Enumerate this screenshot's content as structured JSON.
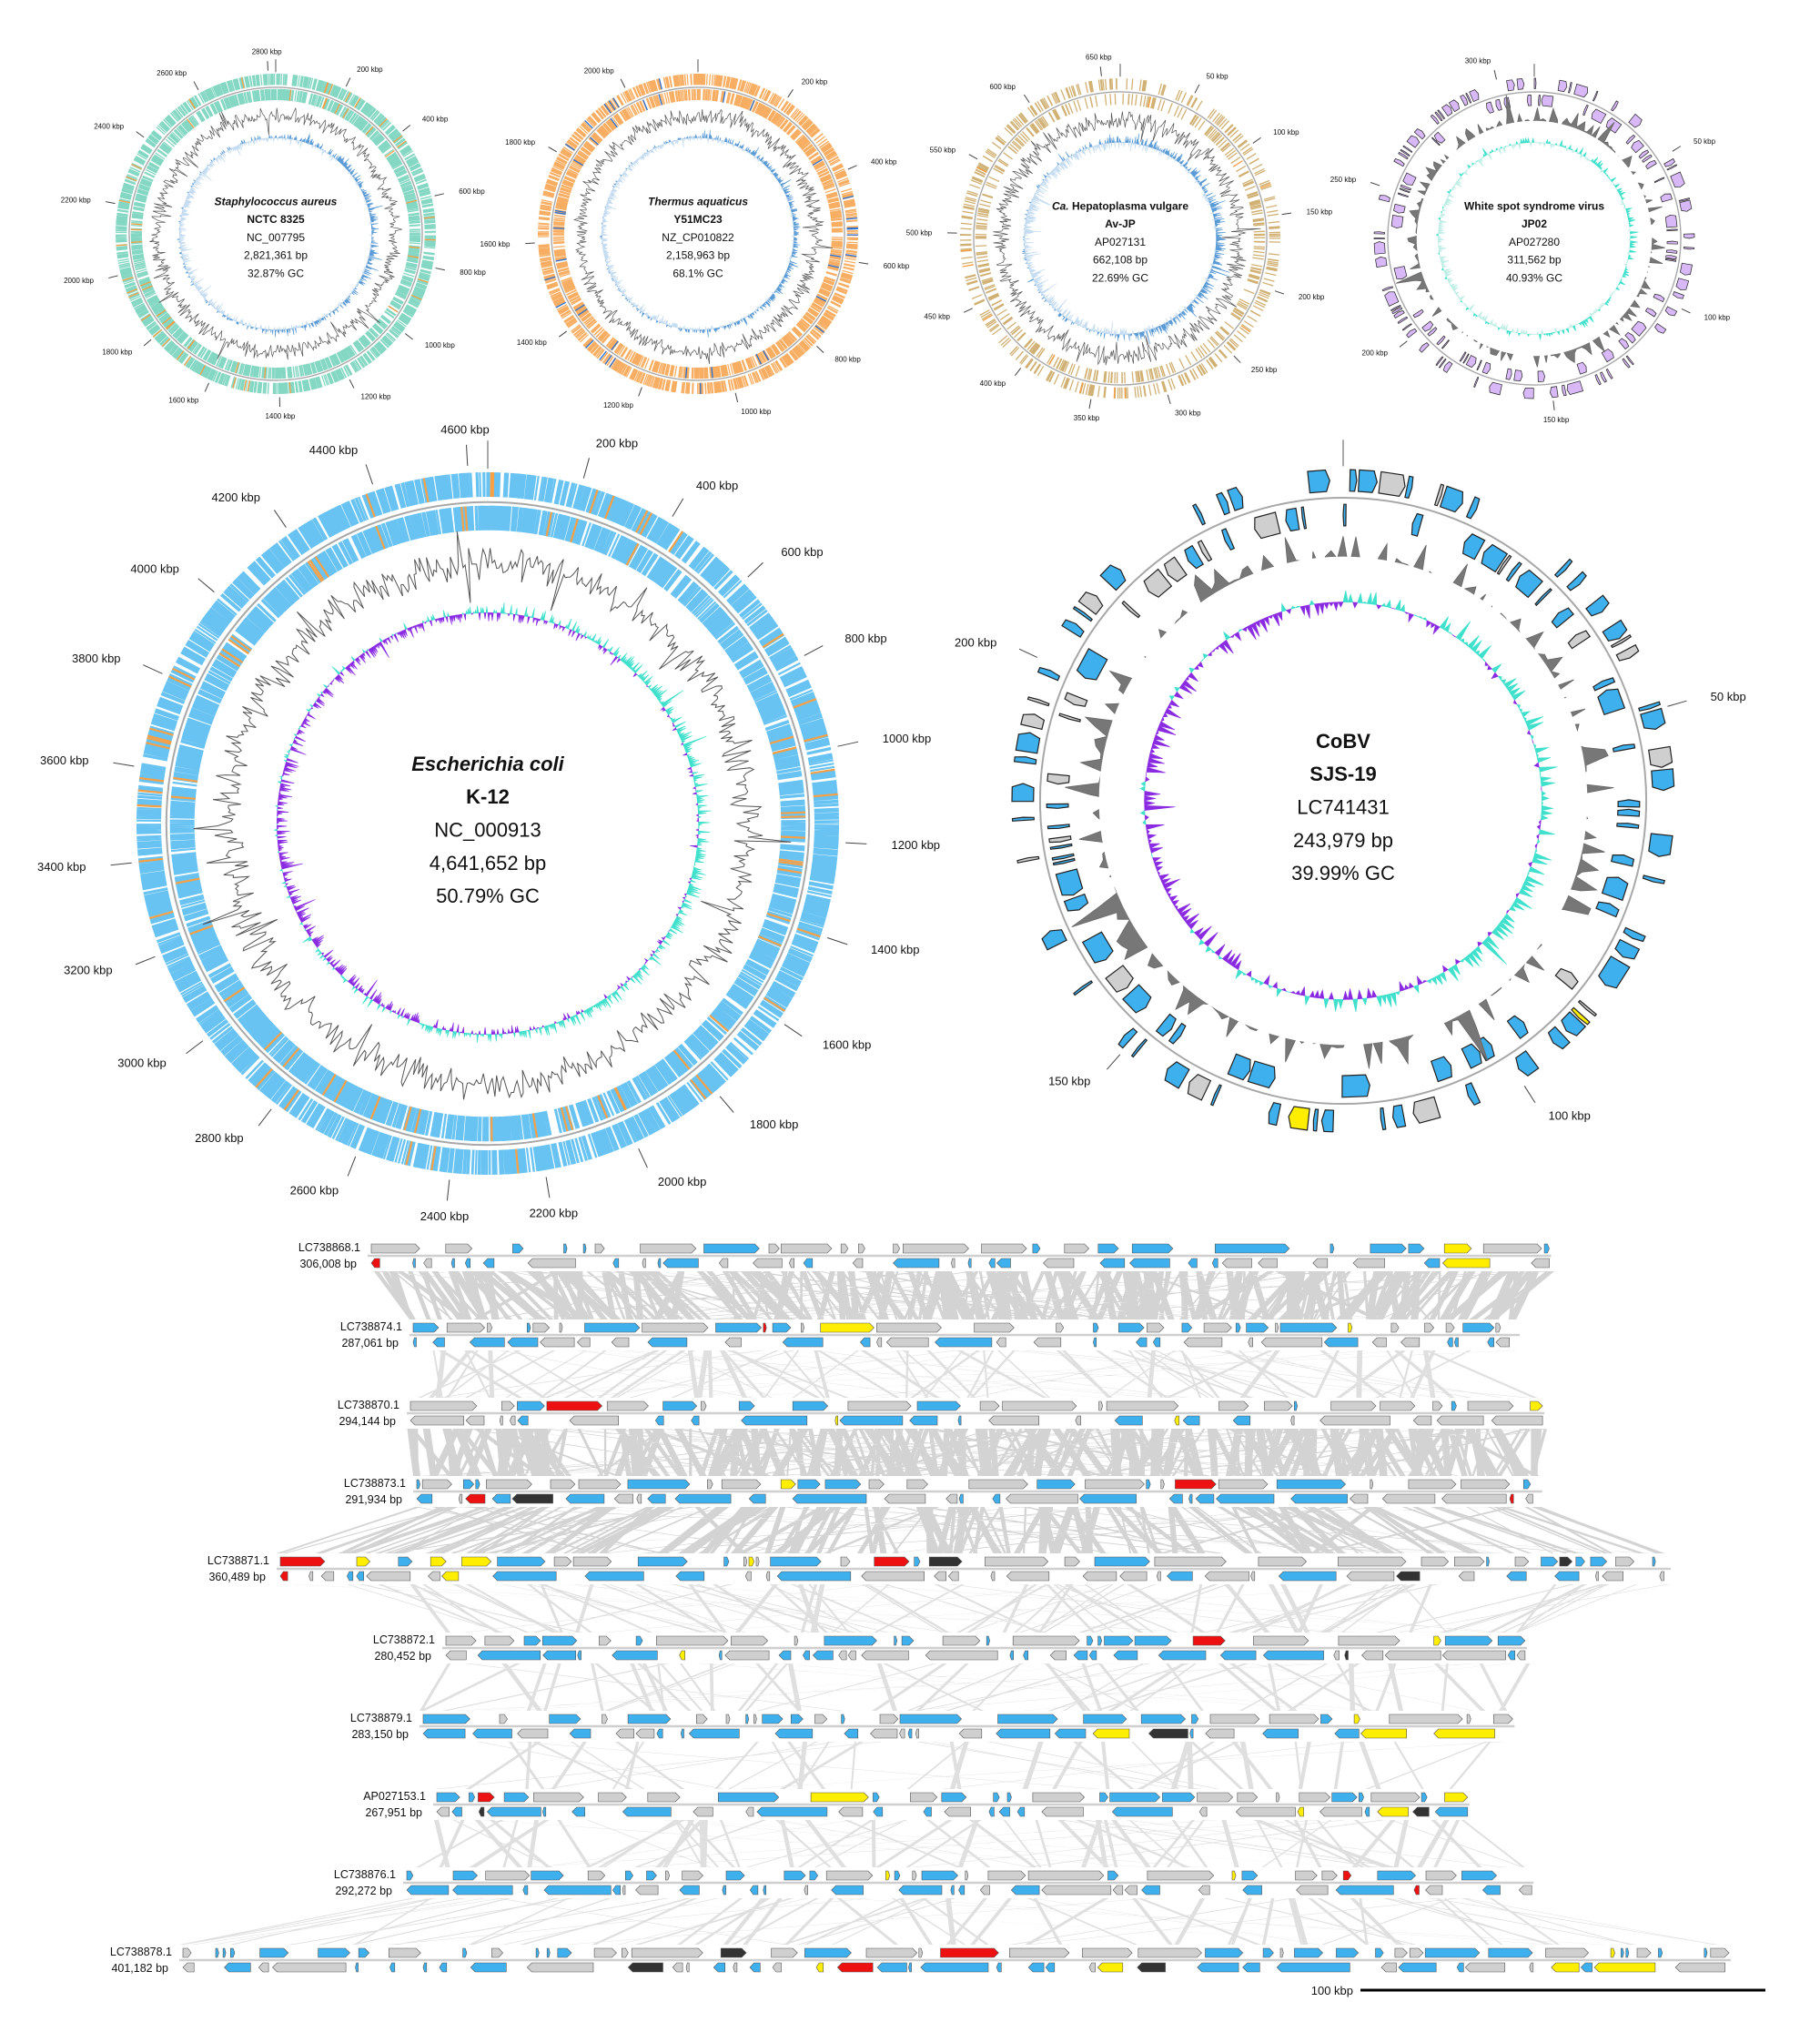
{
  "colors": {
    "saureus_feature": "#6fd0b8",
    "thermus_feature": "#f7a046",
    "hepato_feature": "#c9a35a",
    "wssv_feature": "#d8b8f6",
    "ecoli_feature": "#4db8f0",
    "cobv_feature": "#3fb0ee",
    "gene_gray": "#cfcfcf",
    "gc_content": "#555555",
    "skew_blue_dark": "#5b9bd5",
    "skew_blue_light": "#c5dcf1",
    "skew_teal": "#3fe0cc",
    "skew_purple": "#8a2be2",
    "skew_teal_light": "#bfeee6",
    "gene_yellow": "#ffee00",
    "gene_red": "#ee1111",
    "gene_dark": "#333333",
    "link_gray": "#c4c4c4"
  },
  "circular_maps": [
    {
      "id": "saureus",
      "name_parts": [
        {
          "text": "Staphylococcus aureus",
          "italic": true
        }
      ],
      "strain": "NCTC 8325",
      "accession": "NC_007795",
      "length_label": "2,821,361 bp",
      "gc_label": "32.87% GC",
      "length_bp": 2821361,
      "ticks": [
        "200 kbp",
        "400 kbp",
        "600 kbp",
        "800 kbp",
        "1000 kbp",
        "1200 kbp",
        "1400 kbp",
        "1600 kbp",
        "1800 kbp",
        "2000 kbp",
        "2200 kbp",
        "2400 kbp",
        "2600 kbp",
        "2800 kbp"
      ]
    },
    {
      "id": "thermus",
      "name_parts": [
        {
          "text": "Thermus aquaticus",
          "italic": true
        }
      ],
      "strain": "Y51MC23",
      "accession": "NZ_CP010822",
      "length_label": "2,158,963 bp",
      "gc_label": "68.1% GC",
      "length_bp": 2158963,
      "ticks": [
        "200 kbp",
        "400 kbp",
        "600 kbp",
        "800 kbp",
        "1000 kbp",
        "1200 kbp",
        "1400 kbp",
        "1600 kbp",
        "1800 kbp",
        "2000 kbp"
      ]
    },
    {
      "id": "hepato",
      "name_parts": [
        {
          "text": "Ca.",
          "italic": true
        },
        {
          "text": " Hepatoplasma vulgare",
          "italic": false
        }
      ],
      "strain": "Av-JP",
      "accession": "AP027131",
      "length_label": "662,108 bp",
      "gc_label": "22.69% GC",
      "length_bp": 662108,
      "ticks": [
        "50 kbp",
        "100 kbp",
        "150 kbp",
        "200 kbp",
        "250 kbp",
        "300 kbp",
        "350 kbp",
        "400 kbp",
        "450 kbp",
        "500 kbp",
        "550 kbp",
        "600 kbp",
        "650 kbp"
      ]
    },
    {
      "id": "wssv",
      "name_parts": [
        {
          "text": "White spot syndrome virus",
          "italic": false
        }
      ],
      "strain": "JP02",
      "accession": "AP027280",
      "length_label": "311,562 bp",
      "gc_label": "40.93% GC",
      "length_bp": 311562,
      "ticks": [
        "50 kbp",
        "100 kbp",
        "150 kbp",
        "200 kbp",
        "250 kbp",
        "300 kbp"
      ]
    },
    {
      "id": "ecoli",
      "name_parts": [
        {
          "text": "Escherichia coli",
          "italic": true
        }
      ],
      "strain": "K-12",
      "accession": "NC_000913",
      "length_label": "4,641,652 bp",
      "gc_label": "50.79% GC",
      "length_bp": 4641652,
      "ticks": [
        "200 kbp",
        "400 kbp",
        "600 kbp",
        "800 kbp",
        "1000 kbp",
        "1200 kbp",
        "1400 kbp",
        "1600 kbp",
        "1800 kbp",
        "2000 kbp",
        "2200 kbp",
        "2400 kbp",
        "2600 kbp",
        "2800 kbp",
        "3000 kbp",
        "3200 kbp",
        "3400 kbp",
        "3600 kbp",
        "3800 kbp",
        "4000 kbp",
        "4200 kbp",
        "4400 kbp",
        "4600 kbp"
      ]
    },
    {
      "id": "cobv",
      "name_parts": [
        {
          "text": "CoBV",
          "italic": false
        }
      ],
      "strain": "SJS-19",
      "accession": "LC741431",
      "length_label": "243,979 bp",
      "gc_label": "39.99% GC",
      "length_bp": 243979,
      "ticks": [
        "50 kbp",
        "100 kbp",
        "150 kbp",
        "200 kbp"
      ]
    }
  ],
  "comparison": {
    "rows": [
      {
        "accession": "LC738868.1",
        "length_label": "306,008 bp",
        "length_bp": 306008
      },
      {
        "accession": "LC738874.1",
        "length_label": "287,061 bp",
        "length_bp": 287061
      },
      {
        "accession": "LC738870.1",
        "length_label": "294,144 bp",
        "length_bp": 294144
      },
      {
        "accession": "LC738873.1",
        "length_label": "291,934 bp",
        "length_bp": 291934
      },
      {
        "accession": "LC738871.1",
        "length_label": "360,489 bp",
        "length_bp": 360489
      },
      {
        "accession": "LC738872.1",
        "length_label": "280,452 bp",
        "length_bp": 280452
      },
      {
        "accession": "LC738879.1",
        "length_label": "283,150 bp",
        "length_bp": 283150
      },
      {
        "accession": "AP027153.1",
        "length_label": "267,951 bp",
        "length_bp": 267951
      },
      {
        "accession": "LC738876.1",
        "length_label": "292,272 bp",
        "length_bp": 292272
      },
      {
        "accession": "LC738878.1",
        "length_label": "401,182 bp",
        "length_bp": 401182
      }
    ],
    "scale_bar_label": "100 kbp",
    "scale_bar_kbp": 100
  }
}
